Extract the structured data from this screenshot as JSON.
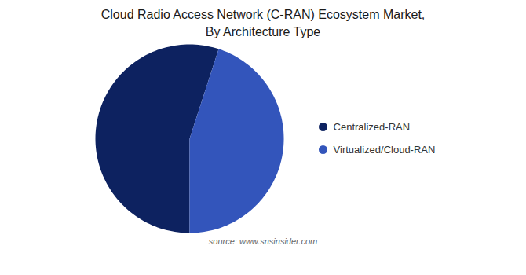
{
  "chart_data": {
    "type": "pie",
    "title": "Cloud Radio Access Network (C-RAN) Ecosystem Market,\nBy Architecture Type",
    "categories": [
      "Centralized-RAN",
      "Virtualized/Cloud-RAN"
    ],
    "values": [
      55,
      45
    ],
    "colors": [
      "#0d2260",
      "#3355bb"
    ],
    "legend": "right",
    "annotations": [
      "source: www.snsinsider.com"
    ]
  }
}
